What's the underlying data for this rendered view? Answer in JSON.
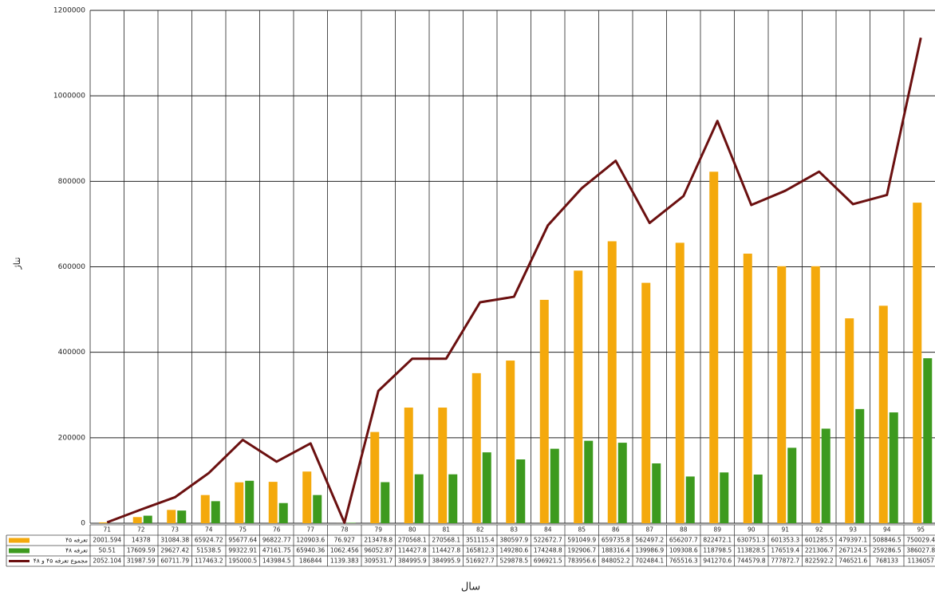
{
  "chart_data": {
    "type": "bar_line_table",
    "y_label": "تناژ",
    "x_label": "سال",
    "categories": [
      "71",
      "72",
      "73",
      "74",
      "75",
      "76",
      "77",
      "78",
      "79",
      "80",
      "81",
      "82",
      "83",
      "84",
      "85",
      "86",
      "87",
      "88",
      "89",
      "90",
      "91",
      "92",
      "93",
      "94",
      "95"
    ],
    "ylim": [
      0,
      1200000
    ],
    "yticks": [
      0,
      200000,
      400000,
      600000,
      800000,
      1000000,
      1200000
    ],
    "grid": true,
    "series": [
      {
        "name": "تعرفه ۴۵",
        "color": "#f4a90c",
        "kind": "bar",
        "values": [
          2001.594,
          14378,
          31084.38,
          65924.72,
          95677.64,
          96822.77,
          120903.6,
          76.927,
          213478.8,
          270568.1,
          270568.1,
          351115.4,
          380597.9,
          522672.7,
          591049.9,
          659735.8,
          562497.2,
          656207.7,
          822472.1,
          630751.3,
          601353.3,
          601285.5,
          479397.1,
          508846.5,
          750029.4
        ]
      },
      {
        "name": "تعرفه ۴۸",
        "color": "#3d9a1e",
        "kind": "bar",
        "values": [
          50.51,
          17609.59,
          29627.42,
          51538.5,
          99322.91,
          47161.75,
          65940.36,
          1062.456,
          96052.87,
          114427.8,
          114427.8,
          165812.3,
          149280.6,
          174248.8,
          192906.7,
          188316.4,
          139986.9,
          109308.6,
          118798.5,
          113828.5,
          176519.4,
          221306.7,
          267124.5,
          259286.5,
          386027.8
        ]
      },
      {
        "name": "مجموع تعرفه ۴۵ و ۴۸",
        "color": "#6b1010",
        "kind": "line",
        "values": [
          2052.104,
          31987.59,
          60711.79,
          117463.2,
          195000.5,
          143984.5,
          186844,
          1139.383,
          309531.7,
          384995.9,
          384995.9,
          516927.7,
          529878.5,
          696921.5,
          783956.6,
          848052.2,
          702484.1,
          765516.3,
          941270.6,
          744579.8,
          777872.7,
          822592.2,
          746521.6,
          768133,
          1136057
        ]
      }
    ]
  }
}
